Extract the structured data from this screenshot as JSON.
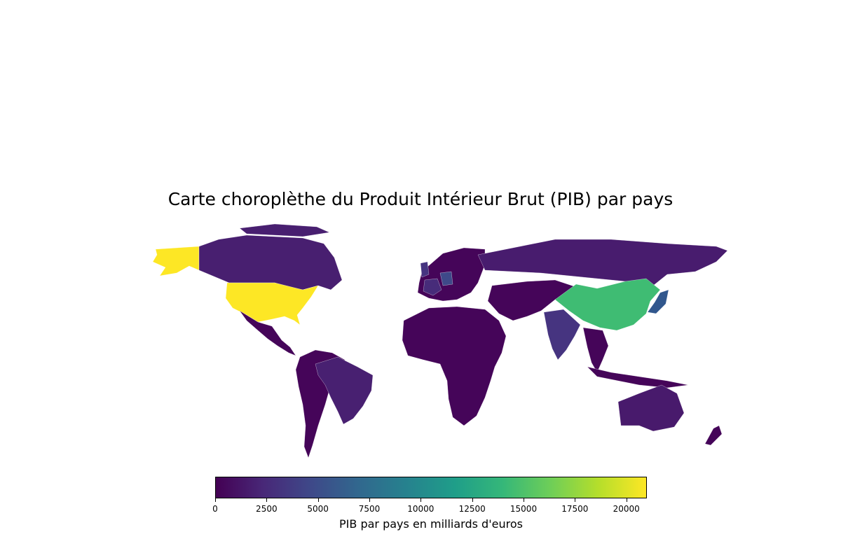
{
  "chart_data": {
    "type": "choropleth",
    "title": "Carte choroplèthe du Produit Intérieur Brut (PIB) par pays",
    "colorbar": {
      "label": "PIB par pays en milliards d'euros",
      "range": [
        0,
        21000
      ],
      "ticks": [
        0,
        2500,
        5000,
        7500,
        10000,
        12500,
        15000,
        17500,
        20000
      ],
      "colormap": "viridis",
      "orientation": "horizontal",
      "position": "bottom"
    },
    "regions": [
      {
        "name": "États-Unis",
        "value": 21000,
        "color": "#fde725"
      },
      {
        "name": "Chine",
        "value": 14500,
        "color": "#3fbc73"
      },
      {
        "name": "Japon",
        "value": 5000,
        "color": "#31578d"
      },
      {
        "name": "Allemagne",
        "value": 3800,
        "color": "#3e4989"
      },
      {
        "name": "Inde",
        "value": 2800,
        "color": "#463480"
      },
      {
        "name": "Royaume-Uni",
        "value": 2700,
        "color": "#463480"
      },
      {
        "name": "France",
        "value": 2600,
        "color": "#472c7a"
      },
      {
        "name": "Brésil",
        "value": 1800,
        "color": "#482071"
      },
      {
        "name": "Canada",
        "value": 1700,
        "color": "#481f70"
      },
      {
        "name": "Russie",
        "value": 1600,
        "color": "#481c6e"
      },
      {
        "name": "Australie",
        "value": 1400,
        "color": "#481a6c"
      },
      {
        "name": "Autres pays",
        "value": 300,
        "color": "#450559"
      }
    ]
  }
}
